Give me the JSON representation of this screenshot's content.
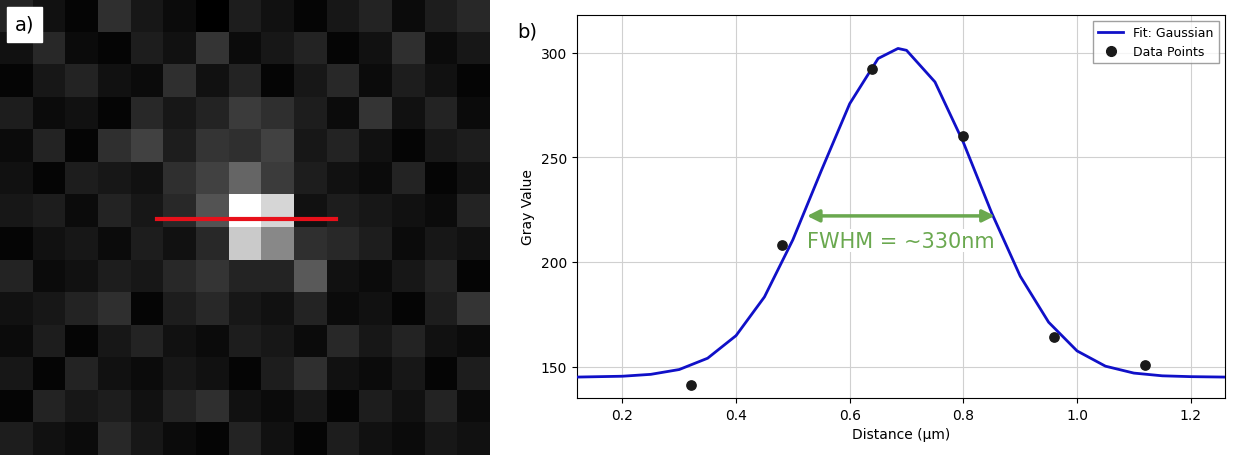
{
  "chart_data": [
    {
      "type": "heatmap",
      "panel_label": "a)",
      "cells": [
        [
          45,
          30,
          20,
          55,
          35,
          25,
          15,
          40,
          30,
          20,
          35,
          45,
          25,
          40,
          50
        ],
        [
          30,
          50,
          25,
          20,
          40,
          30,
          60,
          25,
          35,
          45,
          20,
          30,
          55,
          25,
          35
        ],
        [
          20,
          35,
          45,
          30,
          25,
          55,
          30,
          45,
          20,
          35,
          50,
          25,
          40,
          30,
          20
        ],
        [
          40,
          25,
          30,
          20,
          50,
          35,
          45,
          65,
          55,
          40,
          25,
          60,
          30,
          45,
          25
        ],
        [
          25,
          45,
          20,
          55,
          70,
          40,
          60,
          55,
          70,
          35,
          45,
          30,
          20,
          35,
          40
        ],
        [
          30,
          20,
          40,
          35,
          30,
          55,
          70,
          100,
          65,
          40,
          30,
          25,
          45,
          20,
          30
        ],
        [
          35,
          40,
          25,
          45,
          35,
          50,
          85,
          230,
          195,
          30,
          40,
          35,
          30,
          25,
          45
        ],
        [
          20,
          30,
          35,
          25,
          40,
          30,
          50,
          185,
          130,
          55,
          50,
          40,
          25,
          35,
          30
        ],
        [
          45,
          25,
          30,
          40,
          35,
          50,
          60,
          45,
          45,
          90,
          30,
          25,
          35,
          45,
          20
        ],
        [
          30,
          35,
          45,
          55,
          20,
          40,
          50,
          35,
          30,
          45,
          25,
          30,
          20,
          40,
          60
        ],
        [
          25,
          40,
          20,
          35,
          45,
          30,
          25,
          40,
          35,
          25,
          50,
          35,
          45,
          30,
          25
        ],
        [
          35,
          20,
          45,
          30,
          25,
          35,
          30,
          20,
          40,
          55,
          30,
          25,
          35,
          20,
          40
        ],
        [
          20,
          45,
          35,
          40,
          30,
          45,
          55,
          30,
          25,
          35,
          20,
          40,
          30,
          45,
          25
        ],
        [
          40,
          30,
          25,
          50,
          35,
          25,
          20,
          45,
          30,
          20,
          40,
          30,
          25,
          35,
          30
        ]
      ],
      "profile_line": {
        "x": [
          4.3,
          9.8
        ],
        "y": 6.25,
        "color": "#e8101a"
      },
      "tick_labels": false
    },
    {
      "type": "scatter",
      "panel_label": "b)",
      "x_label": "Distance (µm)",
      "y_label": "Gray Value",
      "series": [
        {
          "name": "Fit: Gaussian",
          "type": "line",
          "color": "#1010c8",
          "x": [
            0.12,
            0.2,
            0.25,
            0.3,
            0.35,
            0.4,
            0.45,
            0.5,
            0.55,
            0.6,
            0.65,
            0.685,
            0.7,
            0.75,
            0.8,
            0.85,
            0.9,
            0.95,
            1.0,
            1.05,
            1.1,
            1.15,
            1.2,
            1.26
          ],
          "values": [
            145.0,
            145.4,
            146.3,
            148.6,
            154.0,
            164.8,
            183.3,
            210.6,
            243.6,
            275.6,
            297.2,
            302.0,
            301.1,
            286.0,
            257.1,
            223.3,
            193.2,
            171.2,
            157.5,
            150.2,
            146.9,
            145.6,
            145.2,
            145.0
          ]
        },
        {
          "name": "Data Points",
          "type": "scatter",
          "color": "#1a1a1a",
          "marker": "o",
          "x": [
            0.32,
            0.48,
            0.64,
            0.8,
            0.96,
            1.12
          ],
          "values": [
            141,
            208,
            292,
            260,
            164,
            151
          ]
        }
      ],
      "annotations": [
        {
          "text": "FWHM = ~330nm",
          "x": [
            0.52,
            0.86
          ],
          "y": 222,
          "color": "#6aa84f"
        }
      ],
      "xlim": [
        0.12,
        1.26
      ],
      "ylim": [
        135,
        318
      ],
      "xticks": [
        0.2,
        0.4,
        0.6,
        0.8,
        1.0,
        1.2
      ],
      "yticks": [
        150,
        200,
        250,
        300
      ],
      "grid": true,
      "legend": "upper right"
    }
  ]
}
